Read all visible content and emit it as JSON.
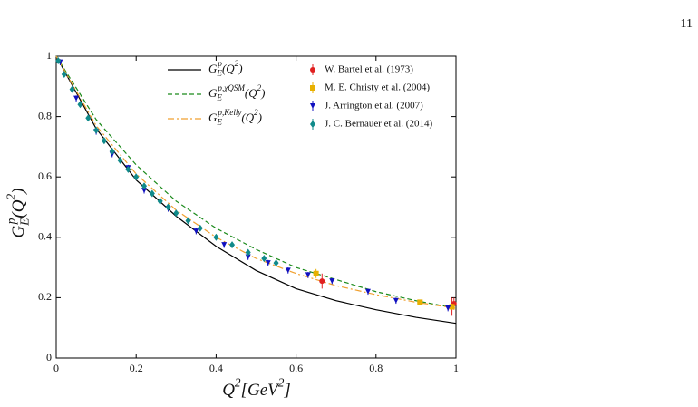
{
  "page_number": "11",
  "chart_data": {
    "type": "line",
    "x_label": "Q^{2}[GeV^{2}]",
    "y_label": "G_{E}^{p}(Q^{2})",
    "xlim": [
      0,
      1
    ],
    "ylim": [
      0,
      1
    ],
    "xticks": [
      0,
      0.2,
      0.4,
      0.6,
      0.8,
      1
    ],
    "yticks": [
      0,
      0.2,
      0.4,
      0.6,
      0.8,
      1
    ],
    "series": [
      {
        "name": "G_{E}^{p}(Q^{2})",
        "kind": "line",
        "color": "#000000",
        "dash": "none",
        "x": [
          0,
          0.1,
          0.2,
          0.3,
          0.4,
          0.5,
          0.6,
          0.7,
          0.8,
          0.9,
          1.0
        ],
        "values": [
          1,
          0.76,
          0.59,
          0.47,
          0.37,
          0.29,
          0.23,
          0.19,
          0.16,
          0.135,
          0.115
        ]
      },
      {
        "name": "G_{E}^{p,χQSM}(Q^{2})",
        "kind": "line",
        "color": "#1a8a1a",
        "dash": "5,3",
        "x": [
          0,
          0.1,
          0.2,
          0.3,
          0.4,
          0.5,
          0.6,
          0.7,
          0.8,
          0.9,
          1.0
        ],
        "values": [
          1,
          0.79,
          0.64,
          0.52,
          0.43,
          0.36,
          0.3,
          0.26,
          0.22,
          0.19,
          0.165
        ]
      },
      {
        "name": "G_{E}^{p,Kelly}(Q^{2})",
        "kind": "line",
        "color": "#f0a030",
        "dash": "7,3,2,3",
        "x": [
          0,
          0.1,
          0.2,
          0.3,
          0.4,
          0.5,
          0.6,
          0.7,
          0.8,
          0.9,
          1.0
        ],
        "values": [
          1,
          0.77,
          0.61,
          0.49,
          0.4,
          0.33,
          0.28,
          0.24,
          0.21,
          0.185,
          0.165
        ]
      },
      {
        "name": "W. Bartel et al. (1973)",
        "kind": "errorbar",
        "marker": "circle",
        "color": "#e02020",
        "x": [
          0.665,
          0.99,
          0.995
        ],
        "values": [
          0.255,
          0.17,
          0.18
        ],
        "errors": [
          0.025,
          0.03,
          0.02
        ]
      },
      {
        "name": "M. E. Christy et al. (2004)",
        "kind": "errorbar",
        "marker": "square",
        "color": "#e8b000",
        "x": [
          0.65,
          0.91,
          0.99
        ],
        "values": [
          0.28,
          0.185,
          0.17
        ],
        "errors": [
          0.015,
          0.008,
          0.01
        ]
      },
      {
        "name": "J. Arrington et al. (2007)",
        "kind": "errorbar",
        "marker": "triangle",
        "color": "#1010c0",
        "x": [
          0.01,
          0.05,
          0.1,
          0.14,
          0.18,
          0.22,
          0.28,
          0.35,
          0.42,
          0.48,
          0.53,
          0.58,
          0.63,
          0.69,
          0.78,
          0.85,
          0.98
        ],
        "values": [
          0.98,
          0.86,
          0.75,
          0.675,
          0.63,
          0.555,
          0.495,
          0.42,
          0.375,
          0.335,
          0.315,
          0.29,
          0.275,
          0.255,
          0.22,
          0.19,
          0.165
        ],
        "errors": [
          0.01,
          0.01,
          0.01,
          0.01,
          0.01,
          0.01,
          0.01,
          0.01,
          0.01,
          0.01,
          0.01,
          0.01,
          0.01,
          0.01,
          0.01,
          0.01,
          0.01
        ]
      },
      {
        "name": "J. C. Bernauer et al. (2014)",
        "kind": "errorbar",
        "marker": "diamond",
        "color": "#108a8a",
        "x": [
          0.005,
          0.02,
          0.04,
          0.06,
          0.08,
          0.1,
          0.12,
          0.14,
          0.16,
          0.18,
          0.2,
          0.22,
          0.24,
          0.26,
          0.28,
          0.3,
          0.33,
          0.36,
          0.4,
          0.44,
          0.48,
          0.52,
          0.55
        ],
        "values": [
          0.985,
          0.94,
          0.89,
          0.84,
          0.795,
          0.755,
          0.72,
          0.685,
          0.655,
          0.625,
          0.6,
          0.57,
          0.545,
          0.52,
          0.5,
          0.48,
          0.455,
          0.43,
          0.4,
          0.375,
          0.35,
          0.33,
          0.315
        ],
        "errors": [
          0.008,
          0.008,
          0.008,
          0.008,
          0.008,
          0.008,
          0.008,
          0.008,
          0.008,
          0.008,
          0.008,
          0.008,
          0.008,
          0.008,
          0.008,
          0.008,
          0.008,
          0.008,
          0.008,
          0.008,
          0.008,
          0.008,
          0.008
        ]
      }
    ]
  }
}
